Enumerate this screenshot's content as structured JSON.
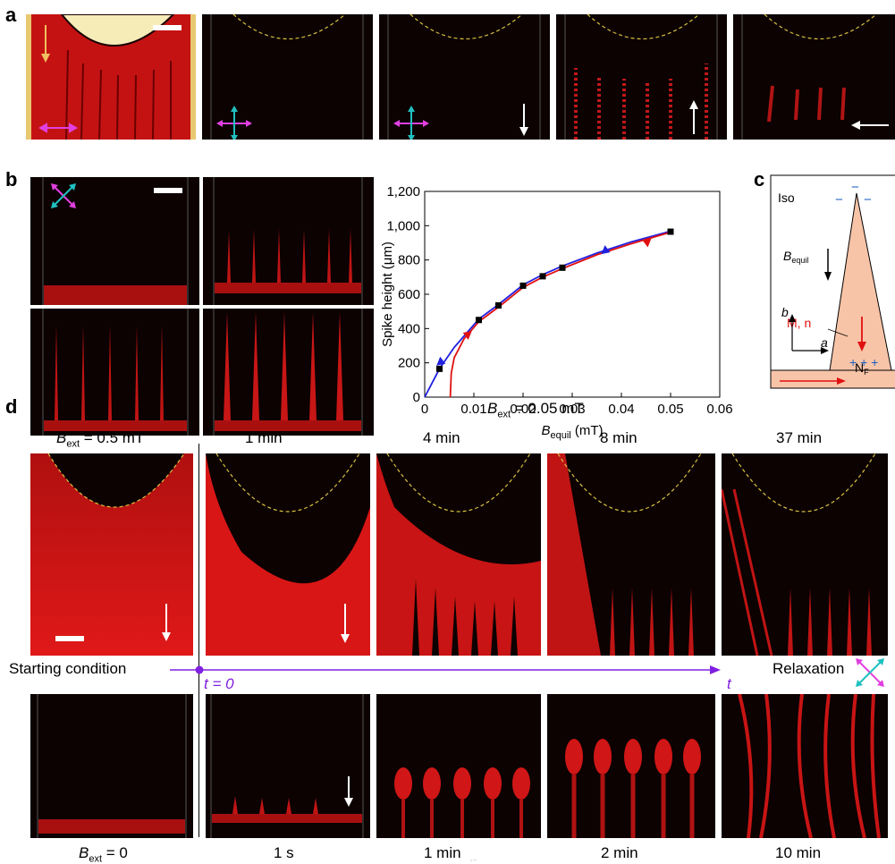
{
  "panels": {
    "a": "a",
    "b": "b",
    "c": "c",
    "d": "d"
  },
  "chart_data": {
    "type": "line",
    "xlabel_main": "B",
    "xlabel_sub": "equil",
    "xlabel_unit": " (mT)",
    "ylabel": "Spike height (μm)",
    "xlim": [
      0,
      0.06
    ],
    "ylim": [
      0,
      1200
    ],
    "x_ticks": [
      0,
      0.01,
      0.02,
      0.03,
      0.04,
      0.05,
      0.06
    ],
    "x_tick_labels": [
      "0",
      "0.01",
      "0.02",
      "0.03",
      "0.04",
      "0.05",
      "0.06"
    ],
    "y_ticks": [
      0,
      200,
      400,
      600,
      800,
      1000,
      1200
    ],
    "y_tick_labels": [
      "0",
      "200",
      "400",
      "600",
      "800",
      "1,000",
      "1,200"
    ],
    "points": {
      "x": [
        0.003,
        0.011,
        0.015,
        0.02,
        0.024,
        0.028,
        0.05
      ],
      "y": [
        165,
        450,
        535,
        650,
        705,
        755,
        965
      ]
    },
    "series": [
      {
        "color": "#2020e0",
        "x": [
          0,
          0.003,
          0.006,
          0.011,
          0.015,
          0.02,
          0.024,
          0.028,
          0.035,
          0.042,
          0.05
        ],
        "y": [
          0,
          165,
          290,
          455,
          540,
          655,
          715,
          765,
          840,
          905,
          968
        ]
      },
      {
        "color": "#e01010",
        "x": [
          0.0052,
          0.0054,
          0.006,
          0.008,
          0.011,
          0.015,
          0.02,
          0.024,
          0.028,
          0.035,
          0.042,
          0.05
        ],
        "y": [
          0,
          140,
          230,
          340,
          440,
          525,
          640,
          700,
          750,
          830,
          895,
          962
        ]
      }
    ],
    "arrows": [
      {
        "color": "#2020e0",
        "x": 0.0035,
        "y": 210,
        "dir": "down"
      },
      {
        "color": "#e01010",
        "x": 0.0085,
        "y": 360,
        "dir": "up"
      },
      {
        "color": "#2020e0",
        "x": 0.037,
        "y": 860,
        "dir": "down"
      },
      {
        "color": "#e01010",
        "x": 0.045,
        "y": 900,
        "dir": "up"
      }
    ]
  },
  "panel_c": {
    "iso": "Iso",
    "b_equil_main": "B",
    "b_equil_sub": "equil",
    "mn": "M, n",
    "nf_main": "N",
    "nf_sub": "F",
    "axis_b": "b",
    "axis_a": "a",
    "minus": "−",
    "plus": "+ + +"
  },
  "panel_d": {
    "bext_top": {
      "main": "B",
      "sub": "ext",
      "rest": " = 0.05 mT"
    },
    "bext_start": {
      "main": "B",
      "sub": "ext",
      "rest": " = 0.5 mT"
    },
    "bext_zero": {
      "main": "B",
      "sub": "ext",
      "rest": " = 0"
    },
    "bext_bottom": {
      "main": "B",
      "sub": "ext",
      "rest": " = 0.05 mT"
    },
    "times_top": [
      "1 min",
      "4 min",
      "8 min",
      "37 min"
    ],
    "times_bottom": [
      "1 s",
      "1 min",
      "2 min",
      "10  min"
    ],
    "starting_condition": "Starting condition",
    "t0": "t = 0",
    "t": "t",
    "relaxation": "Relaxation"
  }
}
